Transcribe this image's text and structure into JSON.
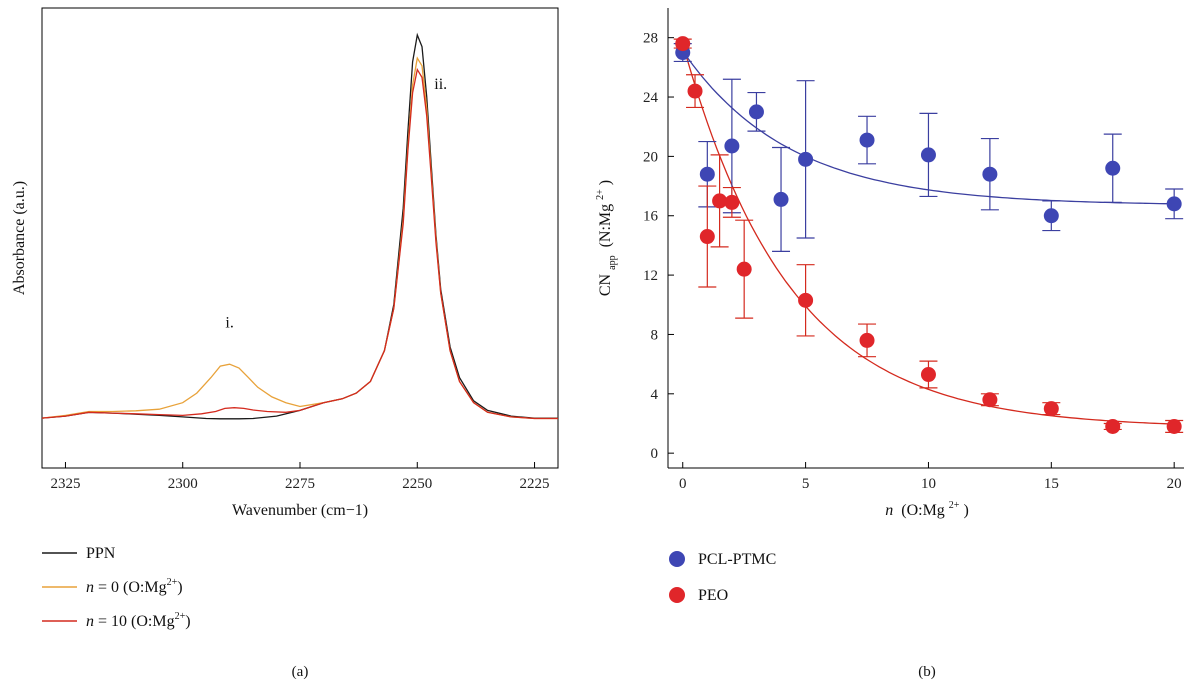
{
  "chart_data": [
    {
      "type": "line",
      "panel_label": "(a)",
      "xlabel": "Wavenumber (cm−1)",
      "ylabel": "Absorbance (a.u.)",
      "xlim": [
        2330,
        2220
      ],
      "ylim": [
        0,
        1.0
      ],
      "x_reversed": true,
      "x_ticks": [
        2325,
        2300,
        2275,
        2250,
        2225
      ],
      "y_ticks": [],
      "annotations": [
        {
          "text": "i.",
          "x": 2290,
          "y": 0.24
        },
        {
          "text": "ii.",
          "x": 2245,
          "y": 0.86
        }
      ],
      "legend": [
        {
          "name_main": "PPN",
          "name_sup": "",
          "name_tail": "",
          "color": "#1a1a1a"
        },
        {
          "name_main": "= 0 (O:Mg",
          "name_sup": "2+",
          "name_tail": ")",
          "italic_prefix": "n",
          "color": "#e8a23a"
        },
        {
          "name_main": "= 10 (O:Mg",
          "name_sup": "2+",
          "name_tail": ")",
          "italic_prefix": "n",
          "color": "#d42a1e"
        }
      ],
      "series": [
        {
          "key": "PPN",
          "color": "#1a1a1a",
          "x": [
            2330,
            2325,
            2320,
            2315,
            2310,
            2305,
            2300,
            2295,
            2292,
            2290,
            2288,
            2285,
            2280,
            2275,
            2270,
            2266,
            2263,
            2260,
            2257,
            2255,
            2253,
            2252,
            2251,
            2250,
            2249,
            2248,
            2247,
            2246,
            2245,
            2243,
            2241,
            2238,
            2235,
            2230,
            2225,
            2220
          ],
          "y": [
            0.005,
            0.01,
            0.02,
            0.018,
            0.015,
            0.012,
            0.008,
            0.004,
            0.003,
            0.003,
            0.003,
            0.004,
            0.01,
            0.025,
            0.045,
            0.055,
            0.07,
            0.1,
            0.18,
            0.3,
            0.55,
            0.75,
            0.93,
            1.0,
            0.97,
            0.84,
            0.66,
            0.48,
            0.34,
            0.19,
            0.11,
            0.05,
            0.025,
            0.01,
            0.005,
            0.005
          ]
        },
        {
          "key": "n0",
          "color": "#e8a23a",
          "x": [
            2330,
            2325,
            2320,
            2315,
            2310,
            2305,
            2300,
            2297,
            2294,
            2292,
            2290,
            2288,
            2286,
            2284,
            2281,
            2278,
            2275,
            2270,
            2266,
            2263,
            2260,
            2257,
            2255,
            2253,
            2252,
            2251,
            2250,
            2249,
            2248,
            2247,
            2246,
            2245,
            2243,
            2241,
            2238,
            2235,
            2230,
            2225,
            2220
          ],
          "y": [
            0.005,
            0.012,
            0.022,
            0.022,
            0.024,
            0.028,
            0.045,
            0.07,
            0.11,
            0.14,
            0.145,
            0.135,
            0.11,
            0.085,
            0.06,
            0.045,
            0.035,
            0.045,
            0.055,
            0.07,
            0.1,
            0.18,
            0.29,
            0.52,
            0.71,
            0.87,
            0.94,
            0.92,
            0.81,
            0.64,
            0.47,
            0.33,
            0.18,
            0.1,
            0.045,
            0.02,
            0.008,
            0.004,
            0.004
          ]
        },
        {
          "key": "n10",
          "color": "#d42a1e",
          "x": [
            2330,
            2325,
            2320,
            2315,
            2310,
            2305,
            2300,
            2296,
            2293,
            2291,
            2289,
            2287,
            2285,
            2282,
            2278,
            2275,
            2270,
            2266,
            2263,
            2260,
            2257,
            2255,
            2253,
            2252,
            2251,
            2250,
            2249,
            2248,
            2247,
            2246,
            2245,
            2243,
            2241,
            2238,
            2235,
            2230,
            2225,
            2220
          ],
          "y": [
            0.005,
            0.01,
            0.02,
            0.018,
            0.016,
            0.014,
            0.012,
            0.016,
            0.022,
            0.03,
            0.032,
            0.03,
            0.026,
            0.022,
            0.02,
            0.025,
            0.045,
            0.055,
            0.07,
            0.1,
            0.18,
            0.29,
            0.51,
            0.7,
            0.85,
            0.91,
            0.89,
            0.79,
            0.63,
            0.46,
            0.33,
            0.18,
            0.1,
            0.045,
            0.02,
            0.008,
            0.004,
            0.004
          ]
        }
      ]
    },
    {
      "type": "scatter",
      "panel_label": "(b)",
      "xlabel_italic": "n",
      "xlabel_main": "(O:Mg",
      "xlabel_sup": "2+",
      "xlabel_tail": ")",
      "ylabel_main": "CN",
      "ylabel_sub": "app",
      "ylabel_mid": "(N:Mg",
      "ylabel_sup": "2+",
      "ylabel_tail": ")",
      "xlim": [
        -0.6,
        20.4
      ],
      "ylim": [
        -1.0,
        30.0
      ],
      "x_ticks": [
        0,
        5,
        10,
        15,
        20
      ],
      "y_ticks": [
        0,
        4,
        8,
        12,
        16,
        20,
        24,
        28
      ],
      "series": [
        {
          "name": "PCL-PTMC",
          "color": "#3b3fa0",
          "marker_color": "#3e46b4",
          "points": [
            {
              "x": 0,
              "y": 27.0,
              "err": 0.6
            },
            {
              "x": 1,
              "y": 18.8,
              "err": 2.2
            },
            {
              "x": 2,
              "y": 20.7,
              "err": 4.5
            },
            {
              "x": 3,
              "y": 23.0,
              "err": 1.3
            },
            {
              "x": 4,
              "y": 17.1,
              "err": 3.5
            },
            {
              "x": 5,
              "y": 19.8,
              "err": 5.3
            },
            {
              "x": 7.5,
              "y": 21.1,
              "err": 1.6
            },
            {
              "x": 10,
              "y": 20.1,
              "err": 2.8
            },
            {
              "x": 12.5,
              "y": 18.8,
              "err": 2.4
            },
            {
              "x": 15,
              "y": 16.0,
              "err": 1.0
            },
            {
              "x": 17.5,
              "y": 19.2,
              "err": 2.3
            },
            {
              "x": 20,
              "y": 16.8,
              "err": 1.0
            }
          ],
          "fit": {
            "a": 16.7,
            "b": 10.4,
            "k": 0.23
          }
        },
        {
          "name": "PEO",
          "color": "#d42a1e",
          "marker_color": "#e0262a",
          "points": [
            {
              "x": 0,
              "y": 27.6,
              "err": 0.3
            },
            {
              "x": 0.5,
              "y": 24.4,
              "err": 1.1
            },
            {
              "x": 1,
              "y": 14.6,
              "err": 3.4
            },
            {
              "x": 1.5,
              "y": 17.0,
              "err": 3.1
            },
            {
              "x": 2,
              "y": 16.9,
              "err": 1.0
            },
            {
              "x": 2.5,
              "y": 12.4,
              "err": 3.3
            },
            {
              "x": 5,
              "y": 10.3,
              "err": 2.4
            },
            {
              "x": 7.5,
              "y": 7.6,
              "err": 1.1
            },
            {
              "x": 10,
              "y": 5.3,
              "err": 0.9
            },
            {
              "x": 12.5,
              "y": 3.6,
              "err": 0.4
            },
            {
              "x": 15,
              "y": 3.0,
              "err": 0.4
            },
            {
              "x": 17.5,
              "y": 1.8,
              "err": 0.2
            },
            {
              "x": 20,
              "y": 1.8,
              "err": 0.4
            }
          ],
          "fit": {
            "a": 1.7,
            "b": 25.9,
            "k": 0.23
          }
        }
      ]
    }
  ]
}
